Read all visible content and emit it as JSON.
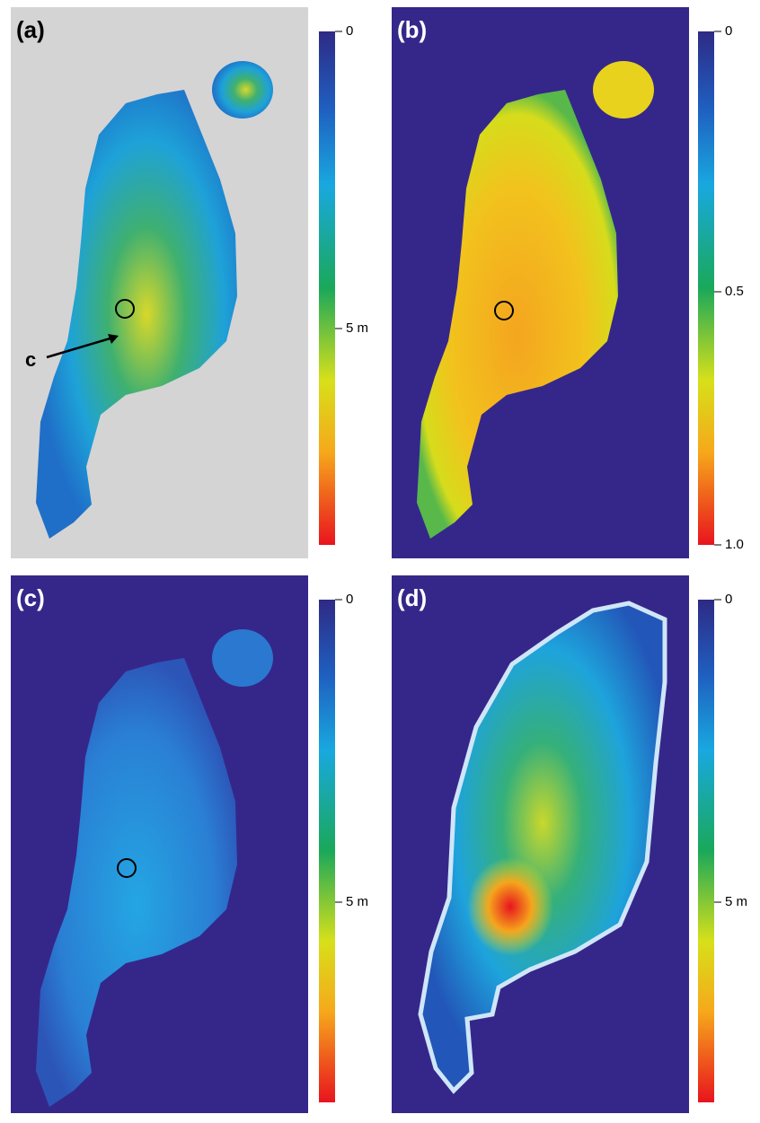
{
  "panels": [
    {
      "label": "(a)",
      "colorbar_ticks": [
        "0",
        "5 m"
      ],
      "annotation": "c"
    },
    {
      "label": "(b)",
      "colorbar_ticks": [
        "0",
        "0.5",
        "1.0"
      ]
    },
    {
      "label": "(c)",
      "colorbar_ticks": [
        "0",
        "5 m"
      ]
    },
    {
      "label": "(d)",
      "colorbar_ticks": [
        "0",
        "5 m"
      ]
    }
  ]
}
